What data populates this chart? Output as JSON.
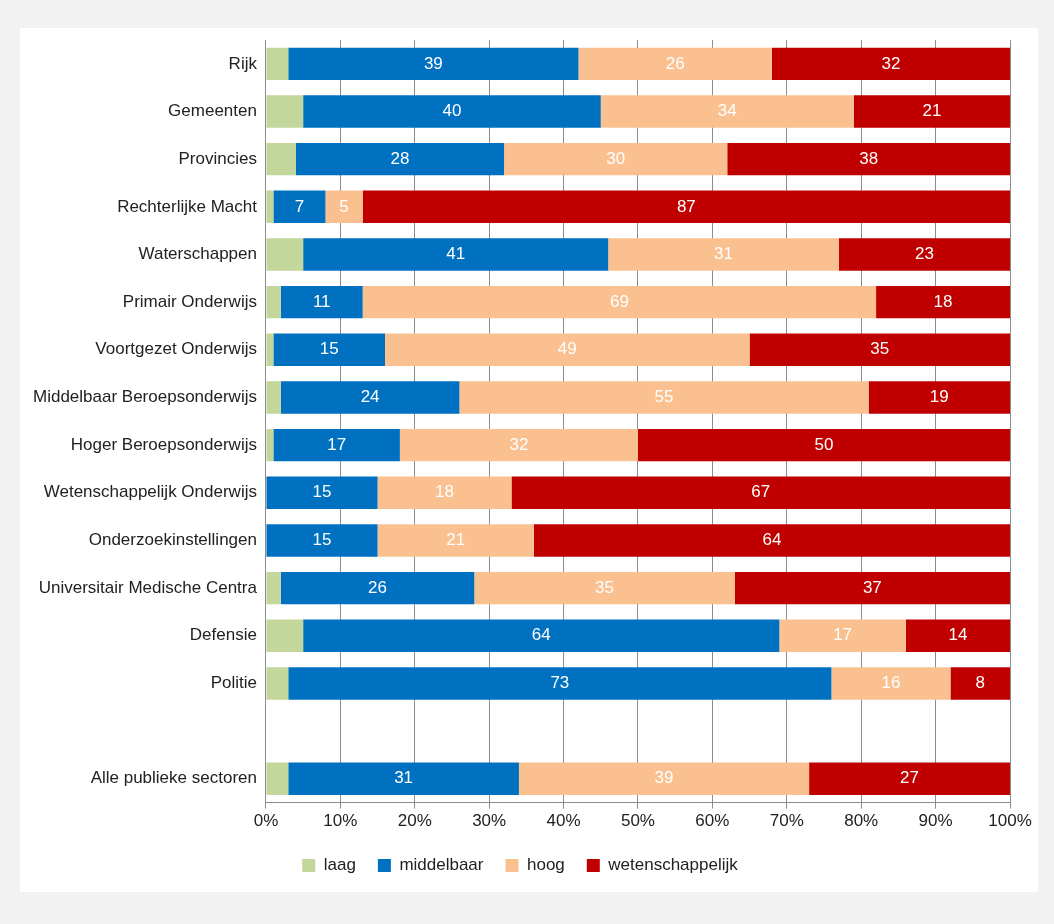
{
  "chart_data": {
    "type": "bar",
    "orientation": "horizontal",
    "stacked": true,
    "categories": [
      "Rijk",
      "Gemeenten",
      "Provincies",
      "Rechterlijke Macht",
      "Waterschappen",
      "Primair Onderwijs",
      "Voortgezet Onderwijs",
      "Middelbaar Beroepsonderwijs",
      "Hoger Beroepsonderwijs",
      "Wetenschappelijk Onderwijs",
      "Onderzoekinstellingen",
      "Universitair Medische Centra",
      "Defensie",
      "Politie",
      null,
      "Alle publieke sectoren"
    ],
    "series": [
      {
        "name": "laag",
        "color": "#c3d69b",
        "values": [
          3,
          5,
          4,
          1,
          5,
          2,
          1,
          2,
          1,
          0,
          0,
          2,
          5,
          3,
          null,
          3
        ]
      },
      {
        "name": "middelbaar",
        "color": "#0070c0",
        "values": [
          39,
          40,
          28,
          7,
          41,
          11,
          15,
          24,
          17,
          15,
          15,
          26,
          64,
          73,
          null,
          31
        ],
        "value_labels": [
          "39",
          "40",
          "28",
          "7",
          "41",
          "11",
          "15",
          "24",
          "17",
          "15",
          "15",
          "26",
          "64",
          "73",
          null,
          "31"
        ]
      },
      {
        "name": "hoog",
        "color": "#fac090",
        "values": [
          26,
          34,
          30,
          5,
          31,
          69,
          49,
          55,
          32,
          18,
          21,
          35,
          17,
          16,
          null,
          39
        ],
        "value_labels": [
          "26",
          "34",
          "30",
          "5",
          "31",
          "69",
          "49",
          "55",
          "32",
          "18",
          "21",
          "35",
          "17",
          "16",
          null,
          "39"
        ]
      },
      {
        "name": "wetenschappelijk",
        "color": "#c00000",
        "values": [
          32,
          21,
          38,
          87,
          23,
          18,
          35,
          19,
          50,
          67,
          64,
          37,
          14,
          8,
          null,
          27
        ],
        "value_labels": [
          "32",
          "21",
          "38",
          "87",
          "23",
          "18",
          "35",
          "19",
          "50",
          "67",
          "64",
          "37",
          "14",
          "8",
          null,
          "27"
        ]
      }
    ],
    "xlim": [
      0,
      100
    ],
    "xticks": [
      {
        "value": 0,
        "label": "0%"
      },
      {
        "value": 10,
        "label": "10%"
      },
      {
        "value": 20,
        "label": "20%"
      },
      {
        "value": 30,
        "label": "30%"
      },
      {
        "value": 40,
        "label": "40%"
      },
      {
        "value": 50,
        "label": "50%"
      },
      {
        "value": 60,
        "label": "60%"
      },
      {
        "value": 70,
        "label": "70%"
      },
      {
        "value": 80,
        "label": "80%"
      },
      {
        "value": 90,
        "label": "90%"
      },
      {
        "value": 100,
        "label": "100%"
      }
    ],
    "grid": "x",
    "legend": "bottom"
  }
}
